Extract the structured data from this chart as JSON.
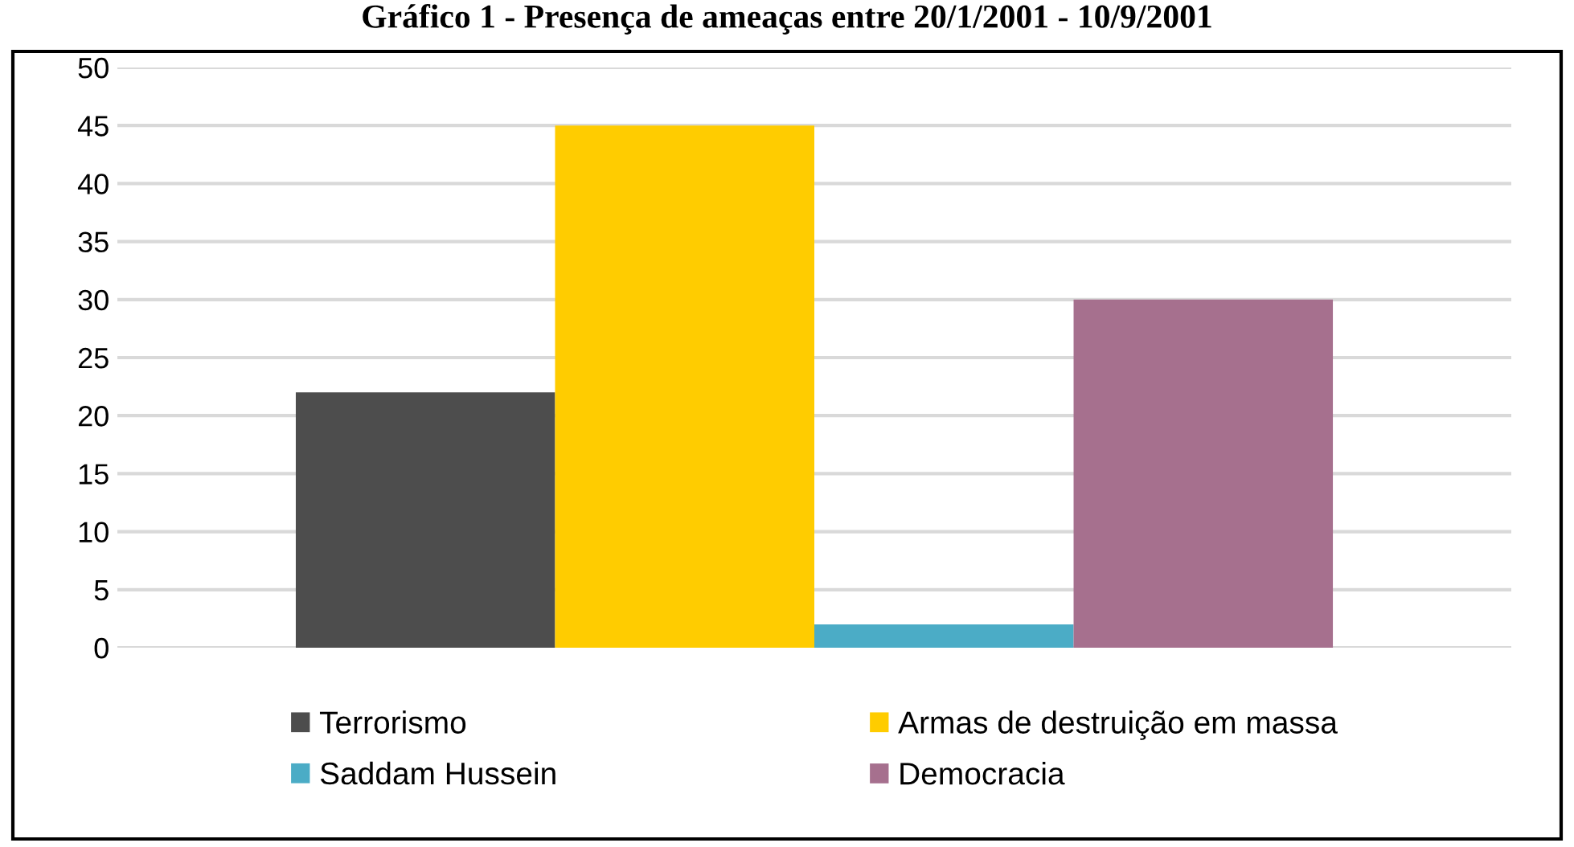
{
  "chart_data": {
    "type": "bar",
    "title": "Gráfico 1 - Presença de ameaças entre 20/1/2001 - 10/9/2001",
    "categories": [
      null
    ],
    "series": [
      {
        "name": "Terrorismo",
        "color": "#4d4d4d",
        "values": [
          22
        ]
      },
      {
        "name": "Armas de destruição em massa",
        "color": "#ffcc00",
        "values": [
          45
        ]
      },
      {
        "name": "Saddam Hussein",
        "color": "#4bacc6",
        "values": [
          2
        ]
      },
      {
        "name": "Democracia",
        "color": "#a6708e",
        "values": [
          30
        ]
      }
    ],
    "ylim": [
      0,
      50
    ],
    "yticks": [
      0,
      5,
      10,
      15,
      20,
      25,
      30,
      35,
      40,
      45,
      50
    ],
    "grid": "y",
    "legend": "bottom"
  }
}
